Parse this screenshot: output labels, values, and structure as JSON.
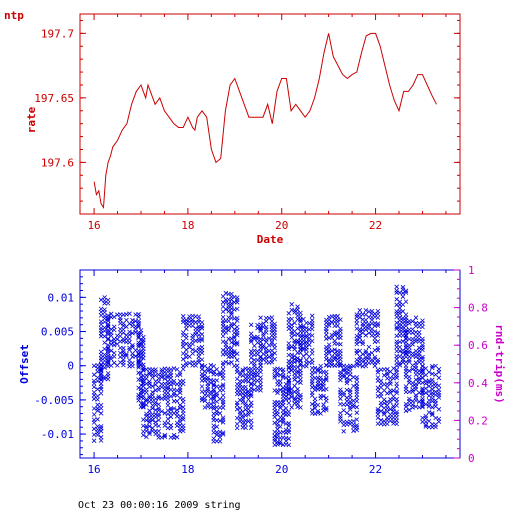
{
  "header": {
    "label": "ntp"
  },
  "footer": {
    "timestamp": "Oct 23 00:00:16 2009 string"
  },
  "colors": {
    "top_axis": "#cc0000",
    "top_line": "#cc0000",
    "offset": "#0000dd",
    "rtt": "#cc00cc",
    "background": "#ffffff"
  },
  "chart_data": [
    {
      "type": "line",
      "xlabel": "Date",
      "ylabel": "rate",
      "xlim": [
        15.7,
        23.8
      ],
      "ylim": [
        197.56,
        197.715
      ],
      "xticks": [
        16,
        18,
        20,
        22
      ],
      "yticks": [
        197.6,
        197.65,
        197.7
      ],
      "ytick_labels": [
        "197.6",
        "197.65",
        "197.7"
      ],
      "series": [
        {
          "x": [
            16.0,
            16.05,
            16.1,
            16.15,
            16.2,
            16.25,
            16.3,
            16.35,
            16.4,
            16.5,
            16.6,
            16.7,
            16.8,
            16.9,
            17.0,
            17.05,
            17.1,
            17.15,
            17.2,
            17.3,
            17.4,
            17.5,
            17.6,
            17.7,
            17.8,
            17.9,
            18.0,
            18.1,
            18.15,
            18.2,
            18.3,
            18.4,
            18.5,
            18.6,
            18.7,
            18.8,
            18.9,
            19.0,
            19.1,
            19.2,
            19.3,
            19.4,
            19.5,
            19.6,
            19.7,
            19.8,
            19.9,
            20.0,
            20.1,
            20.2,
            20.3,
            20.4,
            20.5,
            20.6,
            20.7,
            20.8,
            20.9,
            21.0,
            21.1,
            21.2,
            21.3,
            21.4,
            21.5,
            21.6,
            21.7,
            21.8,
            21.9,
            22.0,
            22.1,
            22.2,
            22.3,
            22.4,
            22.5,
            22.6,
            22.7,
            22.8,
            22.9,
            23.0,
            23.1,
            23.2,
            23.3
          ],
          "y": [
            197.585,
            197.575,
            197.578,
            197.568,
            197.565,
            197.59,
            197.6,
            197.605,
            197.612,
            197.617,
            197.625,
            197.63,
            197.645,
            197.655,
            197.66,
            197.655,
            197.65,
            197.66,
            197.655,
            197.645,
            197.65,
            197.64,
            197.635,
            197.63,
            197.627,
            197.627,
            197.635,
            197.627,
            197.625,
            197.635,
            197.64,
            197.635,
            197.61,
            197.6,
            197.603,
            197.64,
            197.66,
            197.665,
            197.655,
            197.645,
            197.635,
            197.635,
            197.635,
            197.635,
            197.645,
            197.63,
            197.655,
            197.665,
            197.665,
            197.64,
            197.645,
            197.64,
            197.635,
            197.64,
            197.65,
            197.665,
            197.685,
            197.7,
            197.682,
            197.675,
            197.668,
            197.665,
            197.668,
            197.67,
            197.685,
            197.698,
            197.7,
            197.7,
            197.69,
            197.675,
            197.66,
            197.648,
            197.64,
            197.655,
            197.655,
            197.66,
            197.668,
            197.668,
            197.66,
            197.652,
            197.645
          ]
        }
      ]
    },
    {
      "type": "scatter",
      "xlabel": "",
      "ylabel": "Offset",
      "y2label": "rnd-trip(ms)",
      "xlim": [
        15.7,
        23.8
      ],
      "ylim": [
        -0.0135,
        0.014
      ],
      "y2lim": [
        0,
        1
      ],
      "xticks": [
        16,
        18,
        20,
        22
      ],
      "yticks": [
        0.01,
        0.005,
        0,
        -0.005,
        -0.01
      ],
      "ytick_labels": [
        "0.01",
        "0.005",
        "0",
        "-0.005",
        "-0.01"
      ],
      "y2ticks": [
        0,
        0.2,
        0.4,
        0.6,
        0.8,
        1
      ],
      "y2tick_labels": [
        "0",
        "0.2",
        "0.4",
        "0.6",
        "0.8",
        "1"
      ],
      "marker": "x",
      "bands": [
        [
          16.0,
          16.15,
          -0.011,
          0.0
        ],
        [
          16.15,
          16.3,
          -0.002,
          0.01
        ],
        [
          16.3,
          16.95,
          0.0,
          0.0075
        ],
        [
          16.95,
          17.05,
          -0.006,
          0.006
        ],
        [
          17.05,
          17.9,
          -0.0105,
          -0.0005
        ],
        [
          17.9,
          18.3,
          0.0,
          0.0072
        ],
        [
          18.3,
          18.55,
          -0.006,
          0.0
        ],
        [
          18.55,
          18.75,
          -0.011,
          -0.0005
        ],
        [
          18.75,
          19.05,
          0.0,
          0.0105
        ],
        [
          19.05,
          19.35,
          -0.009,
          -0.0005
        ],
        [
          19.35,
          19.55,
          -0.0035,
          0.006
        ],
        [
          19.55,
          19.85,
          0.0,
          0.007
        ],
        [
          19.85,
          20.15,
          -0.0115,
          -0.0005
        ],
        [
          20.15,
          20.4,
          -0.006,
          0.009
        ],
        [
          20.4,
          20.65,
          0.0,
          0.0072
        ],
        [
          20.65,
          20.95,
          -0.007,
          0.0
        ],
        [
          20.95,
          21.25,
          0.0,
          0.0072
        ],
        [
          21.25,
          21.6,
          -0.0095,
          0.0
        ],
        [
          21.6,
          22.05,
          0.0,
          0.008
        ],
        [
          22.05,
          22.45,
          -0.0085,
          -0.0005
        ],
        [
          22.45,
          22.65,
          0.0,
          0.0115
        ],
        [
          22.65,
          23.0,
          -0.0065,
          0.007
        ],
        [
          23.0,
          23.35,
          -0.009,
          0.0
        ]
      ]
    }
  ]
}
